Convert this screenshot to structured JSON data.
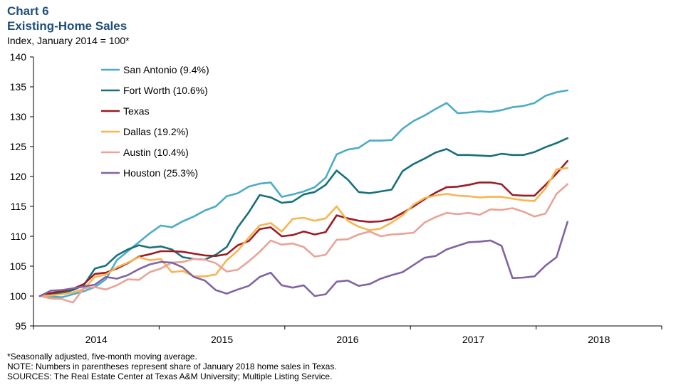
{
  "chart_data": {
    "type": "line",
    "label": "Chart 6",
    "title": "Existing-Home Sales",
    "ylabel": "Index, January 2014 = 100*",
    "ylim": [
      95,
      140
    ],
    "yticks": [
      95,
      100,
      105,
      110,
      115,
      120,
      125,
      130,
      135,
      140
    ],
    "xlim": [
      0,
      49
    ],
    "xtick_labels": [
      "2014",
      "2015",
      "2016",
      "2017",
      "2018"
    ],
    "x_start": "Jan 2014",
    "x_end": "Jan 2018",
    "legend_position": "top-left",
    "series": [
      {
        "name": "San Antonio (9.4%)",
        "color": "#4bacc6",
        "values": [
          100,
          99.9,
          99.8,
          100.3,
          100.8,
          101.5,
          102.8,
          106,
          107.5,
          109,
          110.5,
          111.8,
          111.5,
          112.5,
          113.3,
          114.3,
          115,
          116.7,
          117.2,
          118.3,
          118.8,
          119,
          116.6,
          117,
          117.5,
          118.2,
          119.8,
          123.7,
          124.5,
          124.8,
          126,
          126,
          126.1,
          128,
          129.3,
          130.2,
          131.3,
          132.3,
          130.6,
          130.7,
          130.9,
          130.8,
          131.1,
          131.6,
          131.8,
          132.3,
          133.5,
          134.1,
          134.4
        ]
      },
      {
        "name": "Fort Worth (10.6%)",
        "color": "#17707a",
        "values": [
          100,
          100.3,
          100.5,
          101,
          101.8,
          104.6,
          105.1,
          106.8,
          107.8,
          108.5,
          108.1,
          108.3,
          107.8,
          106.5,
          106.2,
          106.1,
          106.9,
          108.2,
          111.5,
          114,
          116.9,
          116.5,
          115.6,
          115.8,
          117,
          117.4,
          118.6,
          121,
          119.5,
          117.4,
          117.2,
          117.5,
          117.8,
          120.9,
          122.1,
          123,
          124,
          124.6,
          123.6,
          123.6,
          123.5,
          123.4,
          123.8,
          123.6,
          123.6,
          124.1,
          124.9,
          125.6,
          126.4
        ]
      },
      {
        "name": "Texas",
        "color": "#9b1c23",
        "values": [
          100,
          100.5,
          100.8,
          101.2,
          102,
          103.7,
          103.9,
          104.6,
          105.5,
          106.6,
          107,
          107.5,
          107.5,
          107.4,
          107.1,
          106.8,
          106.7,
          107,
          108.5,
          109.2,
          111.2,
          111.5,
          110,
          110.2,
          110.8,
          110.3,
          110.7,
          113.5,
          113,
          112.6,
          112.4,
          112.5,
          112.9,
          113.9,
          115,
          116.2,
          117.3,
          118.2,
          118.3,
          118.6,
          119,
          119,
          118.7,
          116.9,
          116.8,
          116.8,
          118.6,
          120.5,
          122.6
        ]
      },
      {
        "name": "Dallas (19.2%)",
        "color": "#f8b551",
        "values": [
          100,
          100.1,
          100.3,
          100.6,
          101.2,
          103.2,
          103.6,
          104.8,
          105.6,
          106.5,
          106,
          106.2,
          104,
          104.2,
          103.3,
          103.3,
          103.6,
          106,
          107.6,
          109.8,
          111.8,
          112.2,
          110.8,
          112.9,
          113.1,
          112.6,
          113,
          115,
          112.6,
          111.6,
          111,
          111.3,
          112.3,
          113.5,
          115.3,
          116.4,
          116.8,
          117.1,
          116.8,
          116.7,
          116.5,
          116.6,
          116.6,
          116.3,
          116,
          115.9,
          118,
          121.2,
          121.4
        ]
      },
      {
        "name": "Austin (10.4%)",
        "color": "#e9a397",
        "values": [
          100,
          99.6,
          99.5,
          98.9,
          101.3,
          101.5,
          101.1,
          101.8,
          102.8,
          102.7,
          104,
          104.6,
          105.6,
          105.7,
          106.2,
          106.1,
          105.5,
          104.1,
          104.4,
          105.8,
          107.4,
          109.3,
          108.6,
          108.8,
          108.2,
          106.6,
          106.9,
          109.4,
          109.5,
          110.3,
          110.8,
          110,
          110.3,
          110.4,
          110.6,
          112.3,
          113.2,
          113.9,
          113.7,
          113.9,
          113.6,
          114.5,
          114.4,
          114.7,
          114.1,
          113.3,
          113.8,
          117.1,
          118.7
        ]
      },
      {
        "name": "Houston (25.3%)",
        "color": "#8064a2",
        "values": [
          100,
          100.9,
          101,
          101.3,
          101.6,
          101.9,
          103.2,
          102.9,
          103.5,
          104.5,
          105.3,
          105.7,
          105.6,
          104.8,
          103.2,
          102.6,
          101,
          100.4,
          101.1,
          101.7,
          103.2,
          103.9,
          101.8,
          101.4,
          101.8,
          100,
          100.3,
          102.4,
          102.6,
          101.7,
          102,
          102.9,
          103.5,
          104,
          105.2,
          106.4,
          106.7,
          107.8,
          108.4,
          109,
          109.1,
          109.3,
          108.4,
          103,
          103.1,
          103.3,
          105.1,
          106.5,
          112.4
        ]
      }
    ]
  },
  "notes": [
    "*Seasonally adjusted, five-month  moving average.",
    "NOTE: Numbers in parentheses represent share of January 2018 home sales in Texas.",
    "SOURCES: The Real Estate Center at Texas A&M University; Multiple Listing Service."
  ]
}
